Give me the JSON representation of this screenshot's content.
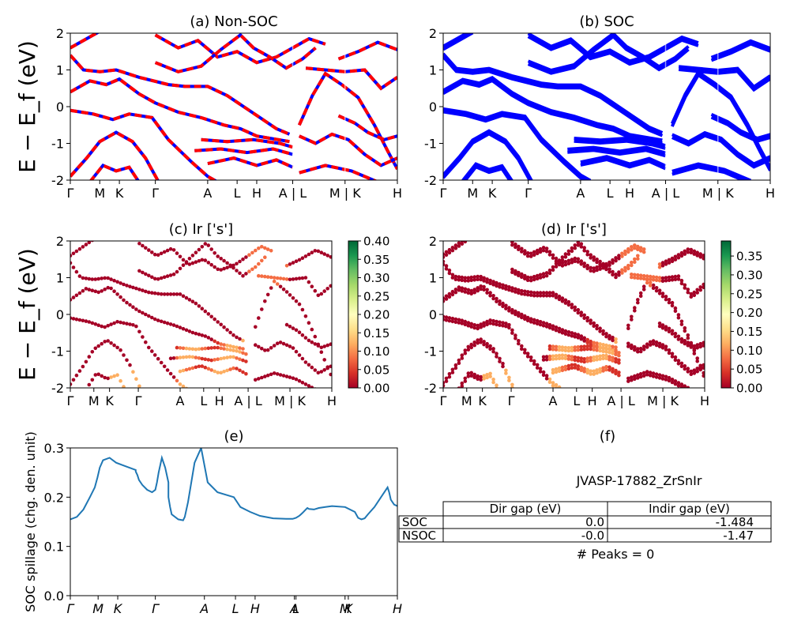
{
  "chart_data": [
    {
      "type": "line",
      "panel": "a",
      "title": "(a) Non-SOC",
      "ylabel": "E − E_f (eV)",
      "ylim": [
        -2,
        2
      ],
      "yticks": [
        -2,
        -1,
        0,
        1,
        2
      ],
      "kpath": [
        "Γ",
        "M",
        "K",
        "Γ",
        "A",
        "L",
        "H",
        "A | L",
        "M | K",
        "H"
      ],
      "series": [
        {
          "points": [
            [
              0,
              1.6
            ],
            [
              0.09,
              2.05
            ]
          ]
        },
        {
          "points": [
            [
              0,
              1.4
            ],
            [
              0.04,
              1.0
            ],
            [
              0.09,
              0.95
            ],
            [
              0.14,
              1.0
            ],
            [
              0.21,
              0.8
            ],
            [
              0.3,
              0.6
            ],
            [
              0.35,
              0.55
            ],
            [
              0.42,
              0.55
            ],
            [
              0.48,
              0.3
            ],
            [
              0.53,
              0.0
            ],
            [
              0.58,
              -0.3
            ],
            [
              0.63,
              -0.6
            ],
            [
              0.67,
              -0.75
            ]
          ]
        },
        {
          "points": [
            [
              0,
              0.4
            ],
            [
              0.06,
              0.7
            ],
            [
              0.11,
              0.6
            ],
            [
              0.15,
              0.75
            ],
            [
              0.21,
              0.35
            ],
            [
              0.26,
              0.1
            ],
            [
              0.33,
              -0.15
            ],
            [
              0.4,
              -0.3
            ],
            [
              0.47,
              -0.5
            ],
            [
              0.52,
              -0.6
            ],
            [
              0.57,
              -0.8
            ],
            [
              0.67,
              -0.95
            ]
          ]
        },
        {
          "points": [
            [
              0,
              -0.1
            ],
            [
              0.07,
              -0.2
            ],
            [
              0.13,
              -0.35
            ],
            [
              0.18,
              -0.2
            ],
            [
              0.25,
              -0.3
            ],
            [
              0.3,
              -0.9
            ],
            [
              0.37,
              -1.5
            ],
            [
              0.42,
              -1.9
            ],
            [
              0.45,
              -2.05
            ]
          ]
        },
        {
          "points": [
            [
              0,
              -1.9
            ],
            [
              0.05,
              -1.4
            ],
            [
              0.09,
              -0.95
            ],
            [
              0.14,
              -0.7
            ],
            [
              0.19,
              -0.95
            ],
            [
              0.23,
              -1.4
            ],
            [
              0.27,
              -2.05
            ]
          ]
        },
        {
          "points": [
            [
              0.06,
              -2.05
            ],
            [
              0.1,
              -1.6
            ],
            [
              0.14,
              -1.75
            ],
            [
              0.18,
              -1.65
            ],
            [
              0.21,
              -2.05
            ]
          ]
        },
        {
          "points": [
            [
              0.26,
              1.95
            ],
            [
              0.33,
              1.6
            ],
            [
              0.39,
              1.8
            ],
            [
              0.45,
              1.35
            ],
            [
              0.51,
              1.5
            ],
            [
              0.57,
              1.2
            ],
            [
              0.63,
              1.35
            ],
            [
              0.68,
              1.6
            ],
            [
              0.73,
              1.85
            ],
            [
              0.78,
              1.7
            ]
          ]
        },
        {
          "points": [
            [
              0.26,
              1.2
            ],
            [
              0.33,
              0.95
            ],
            [
              0.4,
              1.1
            ],
            [
              0.46,
              1.55
            ],
            [
              0.52,
              1.95
            ],
            [
              0.56,
              1.6
            ],
            [
              0.61,
              1.35
            ],
            [
              0.66,
              1.05
            ],
            [
              0.71,
              1.3
            ],
            [
              0.75,
              1.6
            ]
          ]
        },
        {
          "points": [
            [
              0.4,
              -0.9
            ],
            [
              0.48,
              -0.95
            ],
            [
              0.56,
              -0.9
            ],
            [
              0.64,
              -1.0
            ],
            [
              0.68,
              -1.1
            ]
          ]
        },
        {
          "points": [
            [
              0.38,
              -1.2
            ],
            [
              0.46,
              -1.15
            ],
            [
              0.54,
              -1.25
            ],
            [
              0.62,
              -1.15
            ],
            [
              0.68,
              -1.3
            ]
          ]
        },
        {
          "points": [
            [
              0.42,
              -1.55
            ],
            [
              0.5,
              -1.4
            ],
            [
              0.57,
              -1.6
            ],
            [
              0.63,
              -1.45
            ],
            [
              0.68,
              -1.65
            ]
          ]
        },
        {
          "points": [
            [
              0.72,
              1.05
            ],
            [
              0.78,
              1.0
            ],
            [
              0.84,
              0.95
            ],
            [
              0.9,
              1.0
            ],
            [
              0.95,
              0.5
            ],
            [
              1.0,
              0.8
            ]
          ]
        },
        {
          "points": [
            [
              0.7,
              -0.5
            ],
            [
              0.74,
              0.3
            ],
            [
              0.78,
              0.9
            ],
            [
              0.83,
              0.6
            ],
            [
              0.88,
              0.25
            ],
            [
              0.93,
              -0.5
            ],
            [
              0.97,
              -1.2
            ],
            [
              1.0,
              -1.7
            ]
          ]
        },
        {
          "points": [
            [
              0.7,
              -0.8
            ],
            [
              0.75,
              -1.0
            ],
            [
              0.8,
              -0.75
            ],
            [
              0.85,
              -0.9
            ],
            [
              0.9,
              -1.3
            ],
            [
              0.95,
              -1.6
            ],
            [
              1.0,
              -1.4
            ]
          ]
        },
        {
          "points": [
            [
              0.82,
              -0.25
            ],
            [
              0.87,
              -0.45
            ],
            [
              0.91,
              -0.7
            ],
            [
              0.96,
              -0.9
            ],
            [
              1.0,
              -0.8
            ]
          ]
        },
        {
          "points": [
            [
              0.7,
              -1.8
            ],
            [
              0.78,
              -1.6
            ],
            [
              0.86,
              -1.75
            ],
            [
              0.94,
              -2.05
            ]
          ]
        },
        {
          "points": [
            [
              0.82,
              1.3
            ],
            [
              0.88,
              1.5
            ],
            [
              0.94,
              1.75
            ],
            [
              1.0,
              1.55
            ]
          ]
        }
      ]
    },
    {
      "type": "line",
      "panel": "b",
      "title": "(b) SOC",
      "ylim": [
        -2,
        2
      ],
      "yticks": [
        -2,
        -1,
        0,
        1,
        2
      ],
      "kpath": [
        "Γ",
        "M",
        "K",
        "Γ",
        "A",
        "L",
        "H",
        "A | L",
        "M | K",
        "H"
      ],
      "note": "same band structure as (a), spin-orbit split, all bands blue"
    },
    {
      "type": "scatter",
      "panel": "c",
      "title": "(c)  Ir ['s']",
      "ylabel": "E − E_f (eV)",
      "ylim": [
        -2,
        2
      ],
      "yticks": [
        -2,
        -1,
        0,
        1,
        2
      ],
      "kpath": [
        "Γ",
        "M",
        "K",
        "Γ",
        "A",
        "L",
        "H",
        "A | L",
        "M | K",
        "H"
      ],
      "colorbar": {
        "min": 0.0,
        "max": 0.4,
        "ticks": [
          "0.00",
          "0.05",
          "0.10",
          "0.15",
          "0.20",
          "0.25",
          "0.30",
          "0.35",
          "0.40"
        ],
        "cmap": "RdYlGn"
      }
    },
    {
      "type": "scatter",
      "panel": "d",
      "title": "(d) Ir ['s']",
      "ylim": [
        -2,
        2
      ],
      "yticks": [
        -2,
        -1,
        0,
        1,
        2
      ],
      "kpath": [
        "Γ",
        "M",
        "K",
        "Γ",
        "A",
        "L",
        "H",
        "A | L",
        "M | K",
        "H"
      ],
      "colorbar": {
        "min": 0.0,
        "max": 0.39,
        "ticks": [
          "0.00",
          "0.05",
          "0.10",
          "0.15",
          "0.20",
          "0.25",
          "0.30",
          "0.35"
        ],
        "cmap": "RdYlGn"
      }
    },
    {
      "type": "line",
      "panel": "e",
      "title": "(e)",
      "ylabel": "SOC spillage (chg. den. unit)",
      "ylim": [
        0.0,
        0.3
      ],
      "yticks": [
        "0.0",
        "0.1",
        "0.2",
        "0.3"
      ],
      "kpath": [
        "Γ",
        "M",
        "K",
        "Γ",
        "A",
        "L",
        "H",
        "A",
        "L",
        "M",
        "K",
        "H"
      ],
      "color": "#1f77b4",
      "x": [
        0,
        0.02,
        0.04,
        0.06,
        0.075,
        0.083,
        0.09,
        0.1,
        0.12,
        0.14,
        0.16,
        0.2,
        0.2,
        0.205,
        0.21,
        0.22,
        0.235,
        0.25,
        0.26,
        0.265,
        0.27,
        0.28,
        0.29,
        0.3,
        0.3,
        0.305,
        0.31,
        0.33,
        0.345,
        0.35,
        0.36,
        0.38,
        0.4,
        0.42,
        0.45,
        0.5,
        0.52,
        0.55,
        0.58,
        0.62,
        0.66,
        0.68,
        0.69,
        0.7,
        0.71,
        0.72,
        0.725,
        0.73,
        0.745,
        0.76,
        0.78,
        0.8,
        0.84,
        0.87,
        0.88,
        0.89,
        0.9,
        0.91,
        0.93,
        0.95,
        0.97,
        0.975,
        0.98,
        0.99,
        1.0
      ],
      "y": [
        0.155,
        0.16,
        0.175,
        0.2,
        0.22,
        0.24,
        0.26,
        0.275,
        0.28,
        0.27,
        0.265,
        0.255,
        0.252,
        0.245,
        0.235,
        0.225,
        0.215,
        0.21,
        0.215,
        0.23,
        0.25,
        0.28,
        0.26,
        0.23,
        0.2,
        0.18,
        0.165,
        0.155,
        0.153,
        0.16,
        0.19,
        0.27,
        0.3,
        0.23,
        0.21,
        0.2,
        0.18,
        0.17,
        0.162,
        0.157,
        0.156,
        0.156,
        0.158,
        0.162,
        0.168,
        0.175,
        0.178,
        0.176,
        0.175,
        0.178,
        0.18,
        0.182,
        0.18,
        0.17,
        0.158,
        0.155,
        0.157,
        0.165,
        0.18,
        0.2,
        0.22,
        0.21,
        0.195,
        0.185,
        0.182
      ]
    },
    {
      "type": "table",
      "panel": "f",
      "title": "(f)",
      "caption": "JVASP-17882_ZrSnIr",
      "columns": [
        "",
        "Dir gap (eV)",
        "Indir gap (eV)"
      ],
      "rows": [
        [
          "SOC",
          "0.0",
          "-1.484"
        ],
        [
          "NSOC",
          "-0.0",
          "-1.47"
        ]
      ],
      "footer": "# Peaks = 0"
    }
  ]
}
